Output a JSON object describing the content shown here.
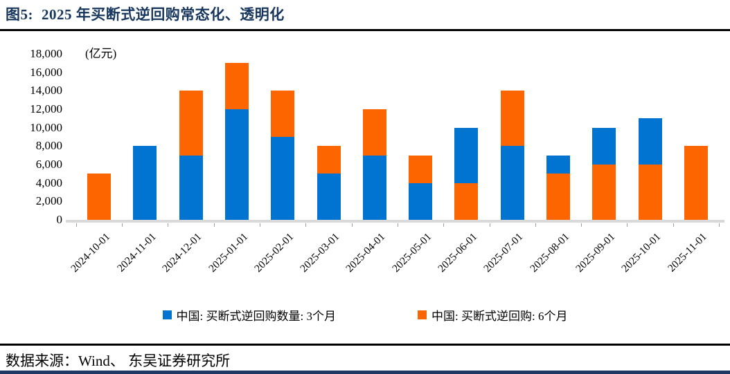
{
  "header": {
    "figure_label": "图5:",
    "title": "2025 年买断式逆回购常态化、透明化"
  },
  "source": {
    "label": "数据来源：",
    "text": "Wind、 东吴证券研究所"
  },
  "colors": {
    "title_navy": "#17365D",
    "rule_black": "#000000",
    "bottom_rule_navy": "#1F3864",
    "axis_line_gray": "#D9D9D9",
    "series_blue": "#0074D0",
    "series_orange": "#FD6500"
  },
  "chart_data": {
    "type": "bar",
    "stacked": true,
    "grid": false,
    "legend_position": "bottom",
    "unit_label": "(亿元)",
    "ylabel": "",
    "xlabel": "",
    "ylim": [
      0,
      18000
    ],
    "y_tick_step": 2000,
    "y_tick_labels": [
      "0",
      "2,000",
      "4,000",
      "6,000",
      "8,000",
      "10,000",
      "12,000",
      "14,000",
      "16,000",
      "18,000"
    ],
    "categories": [
      "2024-10-01",
      "2024-11-01",
      "2024-12-01",
      "2025-01-01",
      "2025-02-01",
      "2025-03-01",
      "2025-04-01",
      "2025-05-01",
      "2025-06-01",
      "2025-07-01",
      "2025-08-01",
      "2025-09-01",
      "2025-10-01",
      "2025-11-01"
    ],
    "series": [
      {
        "key": "3m",
        "name": "中国: 买断式逆回购数量: 3个月",
        "color": "#0074D0",
        "values": [
          0,
          8000,
          7000,
          12000,
          9000,
          5000,
          7000,
          4000,
          6000,
          8000,
          2000,
          4000,
          5000,
          0
        ]
      },
      {
        "key": "6m",
        "name": "中国: 买断式逆回购: 6个月",
        "color": "#FD6500",
        "values": [
          5000,
          0,
          7000,
          5000,
          5000,
          3000,
          5000,
          3000,
          4000,
          6000,
          5000,
          6000,
          6000,
          8000
        ]
      }
    ],
    "stack_bottom_series": [
      "6m",
      "3m",
      "3m",
      "3m",
      "3m",
      "3m",
      "3m",
      "3m",
      "6m",
      "3m",
      "6m",
      "6m",
      "6m",
      "6m"
    ],
    "totals": [
      5000,
      8000,
      14000,
      17000,
      14000,
      8000,
      12000,
      7000,
      10000,
      14000,
      7000,
      10000,
      11000,
      8000
    ]
  }
}
